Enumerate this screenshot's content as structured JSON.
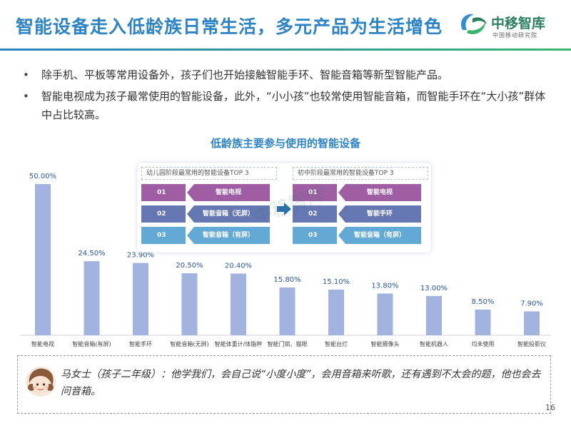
{
  "header": {
    "title": "智能设备走入低龄族日常生活，多元产品为生活增色",
    "logo_text": "中移智库",
    "logo_subtext": "中国移动研究院"
  },
  "bullets": [
    "除手机、平板等常用设备外，孩子们也开始接触智能手环、智能音箱等新型智能产品。",
    "智能电视成为孩子最常使用的智能设备，此外，“小小孩”也较常使用智能音箱，而智能手环在“大小孩”群体中占比较高。"
  ],
  "chart_data": {
    "type": "bar",
    "title": "低龄族主要参与使用的智能设备",
    "categories": [
      "智能电视",
      "智能音箱(有屏)",
      "智能手环",
      "智能音箱(无屏)",
      "智能体重计/体脂秤",
      "智能门锁、猫眼",
      "智能台灯",
      "智能摄像头",
      "智能机器人",
      "均未使用",
      "智能投影仪"
    ],
    "values": [
      50.0,
      24.5,
      23.9,
      20.5,
      20.4,
      15.8,
      15.1,
      13.8,
      13.0,
      8.5,
      7.9
    ],
    "value_labels": [
      "50.00%",
      "24.50%",
      "23.90%",
      "20.50%",
      "20.40%",
      "15.80%",
      "15.10%",
      "13.80%",
      "13.00%",
      "8.50%",
      "7.90%"
    ],
    "ylim": [
      0,
      50
    ],
    "unit": "%",
    "bar_color": "#a2b3df",
    "grid": false,
    "legend": "none"
  },
  "top3_panel": {
    "left": {
      "title": "幼儿园阶段最常用的智能设备TOP 3",
      "items": [
        {
          "rank": "01",
          "label": "智能电视"
        },
        {
          "rank": "02",
          "label": "智能音箱（无屏）"
        },
        {
          "rank": "03",
          "label": "智能音箱（有屏）"
        }
      ]
    },
    "right": {
      "title": "初中阶段最常用的智能设备TOP 3",
      "items": [
        {
          "rank": "01",
          "label": "智能电视"
        },
        {
          "rank": "02",
          "label": "智能手环"
        },
        {
          "rank": "03",
          "label": "智能音箱（有屏）"
        }
      ]
    },
    "colors": [
      "#9f5ea3",
      "#6577b3",
      "#62a9d6"
    ]
  },
  "watermark": {
    "text": "中移智库"
  },
  "quote": {
    "text": "马女士（孩子二年级）：他学我们，会自己说“小度小度”，会用音箱来听歌，还有遇到不太会的题，他也会去问音箱。"
  },
  "page_number": "16",
  "colors": {
    "title_blue": "#2c84c6",
    "brand_green": "#2a7f5f"
  },
  "icons": {
    "logo": "china-mobile-logo-icon",
    "arrow": "arrow-right-icon",
    "avatar": "girl-avatar-icon"
  }
}
